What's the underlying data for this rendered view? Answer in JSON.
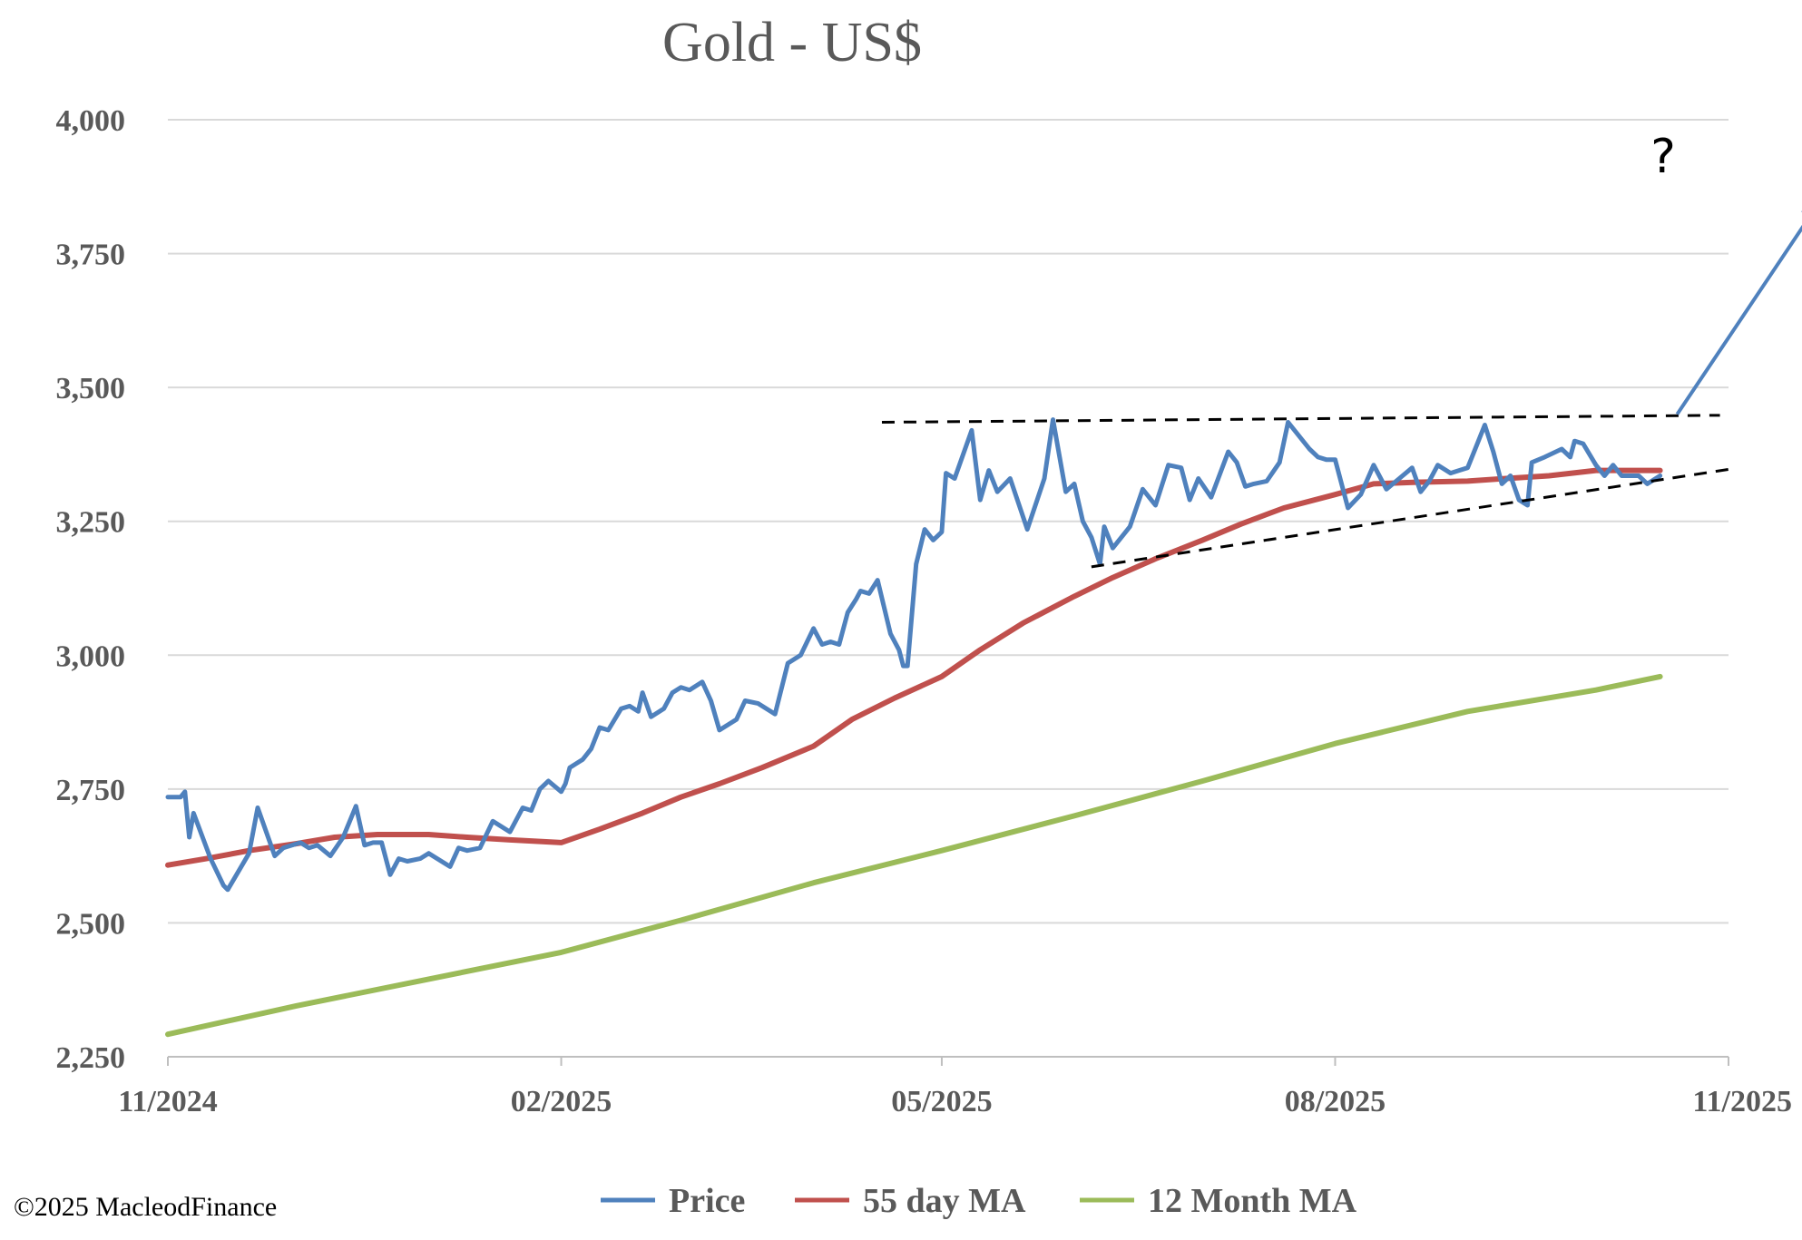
{
  "chart_data": {
    "type": "line",
    "title": "Gold - US$",
    "copyright": "©2025 MacleodFinance",
    "annotation": "?",
    "ylim": [
      2250,
      4000
    ],
    "yticks": [
      2250,
      2500,
      2750,
      3000,
      3250,
      3500,
      3750,
      4000
    ],
    "ytick_labels": [
      "2,250",
      "2,500",
      "2,750",
      "3,000",
      "3,250",
      "3,500",
      "3,750",
      "4,000"
    ],
    "xlim": [
      "2024-11-01",
      "2025-11-01"
    ],
    "xticks": [
      "2024-11-01",
      "2025-02-01",
      "2025-05-01",
      "2025-08-01",
      "2025-11-01"
    ],
    "xtick_labels": [
      "11/2024",
      "02/2025",
      "05/2025",
      "08/2025",
      "11/2025"
    ],
    "grid": true,
    "legend_position": "bottom",
    "colors": {
      "price": "#4f81bd",
      "ma55": "#c0504d",
      "ma12m": "#9bbb59",
      "grid": "#d9d9d9",
      "annotation_arrow": "#4f81bd",
      "trendline": "#000000"
    },
    "series": [
      {
        "name": "Price",
        "color": "#4f81bd",
        "points": [
          [
            "2024-11-01",
            2735
          ],
          [
            "2024-11-04",
            2735
          ],
          [
            "2024-11-05",
            2745
          ],
          [
            "2024-11-06",
            2660
          ],
          [
            "2024-11-07",
            2705
          ],
          [
            "2024-11-11",
            2620
          ],
          [
            "2024-11-14",
            2570
          ],
          [
            "2024-11-15",
            2562
          ],
          [
            "2024-11-20",
            2630
          ],
          [
            "2024-11-22",
            2715
          ],
          [
            "2024-11-26",
            2625
          ],
          [
            "2024-11-28",
            2640
          ],
          [
            "2024-12-02",
            2650
          ],
          [
            "2024-12-04",
            2640
          ],
          [
            "2024-12-06",
            2645
          ],
          [
            "2024-12-09",
            2625
          ],
          [
            "2024-12-12",
            2660
          ],
          [
            "2024-12-15",
            2718
          ],
          [
            "2024-12-17",
            2645
          ],
          [
            "2024-12-19",
            2650
          ],
          [
            "2024-12-21",
            2650
          ],
          [
            "2024-12-23",
            2590
          ],
          [
            "2024-12-25",
            2620
          ],
          [
            "2024-12-27",
            2615
          ],
          [
            "2024-12-30",
            2620
          ],
          [
            "2025-01-01",
            2630
          ],
          [
            "2025-01-03",
            2620
          ],
          [
            "2025-01-06",
            2605
          ],
          [
            "2025-01-08",
            2640
          ],
          [
            "2025-01-10",
            2635
          ],
          [
            "2025-01-13",
            2640
          ],
          [
            "2025-01-16",
            2690
          ],
          [
            "2025-01-20",
            2670
          ],
          [
            "2025-01-23",
            2715
          ],
          [
            "2025-01-25",
            2710
          ],
          [
            "2025-01-27",
            2750
          ],
          [
            "2025-01-29",
            2765
          ],
          [
            "2025-02-01",
            2745
          ],
          [
            "2025-02-02",
            2760
          ],
          [
            "2025-02-03",
            2790
          ],
          [
            "2025-02-06",
            2805
          ],
          [
            "2025-02-08",
            2825
          ],
          [
            "2025-02-10",
            2865
          ],
          [
            "2025-02-12",
            2860
          ],
          [
            "2025-02-15",
            2900
          ],
          [
            "2025-02-17",
            2905
          ],
          [
            "2025-02-19",
            2895
          ],
          [
            "2025-02-20",
            2930
          ],
          [
            "2025-02-22",
            2885
          ],
          [
            "2025-02-25",
            2900
          ],
          [
            "2025-02-27",
            2930
          ],
          [
            "2025-03-01",
            2940
          ],
          [
            "2025-03-03",
            2935
          ],
          [
            "2025-03-06",
            2950
          ],
          [
            "2025-03-08",
            2915
          ],
          [
            "2025-03-10",
            2860
          ],
          [
            "2025-03-14",
            2880
          ],
          [
            "2025-03-16",
            2915
          ],
          [
            "2025-03-19",
            2910
          ],
          [
            "2025-03-23",
            2890
          ],
          [
            "2025-03-26",
            2985
          ],
          [
            "2025-03-29",
            3000
          ],
          [
            "2025-04-01",
            3050
          ],
          [
            "2025-04-03",
            3020
          ],
          [
            "2025-04-05",
            3025
          ],
          [
            "2025-04-07",
            3020
          ],
          [
            "2025-04-09",
            3080
          ],
          [
            "2025-04-11",
            3105
          ],
          [
            "2025-04-12",
            3120
          ],
          [
            "2025-04-14",
            3115
          ],
          [
            "2025-04-16",
            3140
          ],
          [
            "2025-04-19",
            3040
          ],
          [
            "2025-04-21",
            3010
          ],
          [
            "2025-04-22",
            2980
          ],
          [
            "2025-04-23",
            2980
          ],
          [
            "2025-04-25",
            3170
          ],
          [
            "2025-04-27",
            3235
          ],
          [
            "2025-04-29",
            3215
          ],
          [
            "2025-05-01",
            3230
          ],
          [
            "2025-05-02",
            3340
          ],
          [
            "2025-05-04",
            3330
          ],
          [
            "2025-05-08",
            3420
          ],
          [
            "2025-05-10",
            3290
          ],
          [
            "2025-05-12",
            3345
          ],
          [
            "2025-05-14",
            3305
          ],
          [
            "2025-05-17",
            3330
          ],
          [
            "2025-05-21",
            3235
          ],
          [
            "2025-05-25",
            3330
          ],
          [
            "2025-05-27",
            3440
          ],
          [
            "2025-05-30",
            3305
          ],
          [
            "2025-06-01",
            3320
          ],
          [
            "2025-06-03",
            3250
          ],
          [
            "2025-06-05",
            3220
          ],
          [
            "2025-06-07",
            3170
          ],
          [
            "2025-06-08",
            3240
          ],
          [
            "2025-06-10",
            3200
          ],
          [
            "2025-06-14",
            3240
          ],
          [
            "2025-06-17",
            3310
          ],
          [
            "2025-06-20",
            3280
          ],
          [
            "2025-06-23",
            3355
          ],
          [
            "2025-06-26",
            3350
          ],
          [
            "2025-06-28",
            3290
          ],
          [
            "2025-06-30",
            3330
          ],
          [
            "2025-07-03",
            3295
          ],
          [
            "2025-07-07",
            3380
          ],
          [
            "2025-07-09",
            3360
          ],
          [
            "2025-07-11",
            3315
          ],
          [
            "2025-07-13",
            3320
          ],
          [
            "2025-07-16",
            3325
          ],
          [
            "2025-07-19",
            3360
          ],
          [
            "2025-07-21",
            3435
          ],
          [
            "2025-07-26",
            3385
          ],
          [
            "2025-07-28",
            3370
          ],
          [
            "2025-07-30",
            3365
          ],
          [
            "2025-08-01",
            3365
          ],
          [
            "2025-08-04",
            3275
          ],
          [
            "2025-08-07",
            3300
          ],
          [
            "2025-08-10",
            3355
          ],
          [
            "2025-08-13",
            3310
          ],
          [
            "2025-08-16",
            3330
          ],
          [
            "2025-08-19",
            3350
          ],
          [
            "2025-08-21",
            3305
          ],
          [
            "2025-08-23",
            3325
          ],
          [
            "2025-08-25",
            3355
          ],
          [
            "2025-08-28",
            3340
          ],
          [
            "2025-08-30",
            3345
          ],
          [
            "2025-09-01",
            3350
          ],
          [
            "2025-09-03",
            3390
          ],
          [
            "2025-09-05",
            3430
          ],
          [
            "2025-09-07",
            3380
          ],
          [
            "2025-09-09",
            3320
          ],
          [
            "2025-09-11",
            3335
          ],
          [
            "2025-09-13",
            3290
          ],
          [
            "2025-09-15",
            3280
          ],
          [
            "2025-09-16",
            3360
          ],
          [
            "2025-09-19",
            3370
          ],
          [
            "2025-09-23",
            3385
          ],
          [
            "2025-09-25",
            3370
          ],
          [
            "2025-09-26",
            3400
          ],
          [
            "2025-09-28",
            3395
          ],
          [
            "2025-10-01",
            3355
          ],
          [
            "2025-10-03",
            3335
          ],
          [
            "2025-10-05",
            3355
          ],
          [
            "2025-10-07",
            3335
          ],
          [
            "2025-10-11",
            3335
          ],
          [
            "2025-10-13",
            3320
          ],
          [
            "2025-10-16",
            3335
          ]
        ]
      },
      {
        "name": "55 day MA",
        "color": "#c0504d",
        "points": [
          [
            "2024-11-01",
            2608
          ],
          [
            "2024-11-10",
            2620
          ],
          [
            "2024-11-20",
            2635
          ],
          [
            "2024-12-01",
            2648
          ],
          [
            "2024-12-10",
            2660
          ],
          [
            "2024-12-20",
            2665
          ],
          [
            "2025-01-01",
            2665
          ],
          [
            "2025-01-10",
            2660
          ],
          [
            "2025-01-20",
            2655
          ],
          [
            "2025-02-01",
            2650
          ],
          [
            "2025-02-10",
            2675
          ],
          [
            "2025-02-20",
            2705
          ],
          [
            "2025-03-01",
            2735
          ],
          [
            "2025-03-10",
            2760
          ],
          [
            "2025-03-20",
            2790
          ],
          [
            "2025-04-01",
            2830
          ],
          [
            "2025-04-10",
            2880
          ],
          [
            "2025-04-20",
            2920
          ],
          [
            "2025-05-01",
            2960
          ],
          [
            "2025-05-10",
            3010
          ],
          [
            "2025-05-20",
            3060
          ],
          [
            "2025-06-01",
            3110
          ],
          [
            "2025-06-10",
            3145
          ],
          [
            "2025-06-20",
            3180
          ],
          [
            "2025-07-01",
            3215
          ],
          [
            "2025-07-10",
            3245
          ],
          [
            "2025-07-20",
            3275
          ],
          [
            "2025-08-01",
            3300
          ],
          [
            "2025-08-10",
            3320
          ],
          [
            "2025-08-20",
            3323
          ],
          [
            "2025-09-01",
            3325
          ],
          [
            "2025-09-10",
            3330
          ],
          [
            "2025-09-20",
            3335
          ],
          [
            "2025-10-01",
            3345
          ],
          [
            "2025-10-16",
            3345
          ]
        ]
      },
      {
        "name": "12 Month MA",
        "color": "#9bbb59",
        "points": [
          [
            "2024-11-01",
            2292
          ],
          [
            "2024-12-01",
            2345
          ],
          [
            "2025-01-01",
            2395
          ],
          [
            "2025-02-01",
            2445
          ],
          [
            "2025-03-01",
            2505
          ],
          [
            "2025-04-01",
            2575
          ],
          [
            "2025-05-01",
            2635
          ],
          [
            "2025-06-01",
            2700
          ],
          [
            "2025-07-01",
            2765
          ],
          [
            "2025-08-01",
            2835
          ],
          [
            "2025-09-01",
            2895
          ],
          [
            "2025-10-01",
            2935
          ],
          [
            "2025-10-16",
            2960
          ]
        ]
      }
    ],
    "trendlines": [
      {
        "name": "resistance",
        "points": [
          [
            "2025-04-17",
            3435
          ],
          [
            "2025-10-30",
            3448
          ]
        ]
      },
      {
        "name": "support",
        "points": [
          [
            "2025-06-05",
            3165
          ],
          [
            "2025-11-01",
            3347
          ]
        ]
      }
    ],
    "arrow": {
      "points": [
        [
          "2025-10-20",
          3450
        ],
        [
          "2025-11-23",
          3855
        ]
      ]
    }
  }
}
